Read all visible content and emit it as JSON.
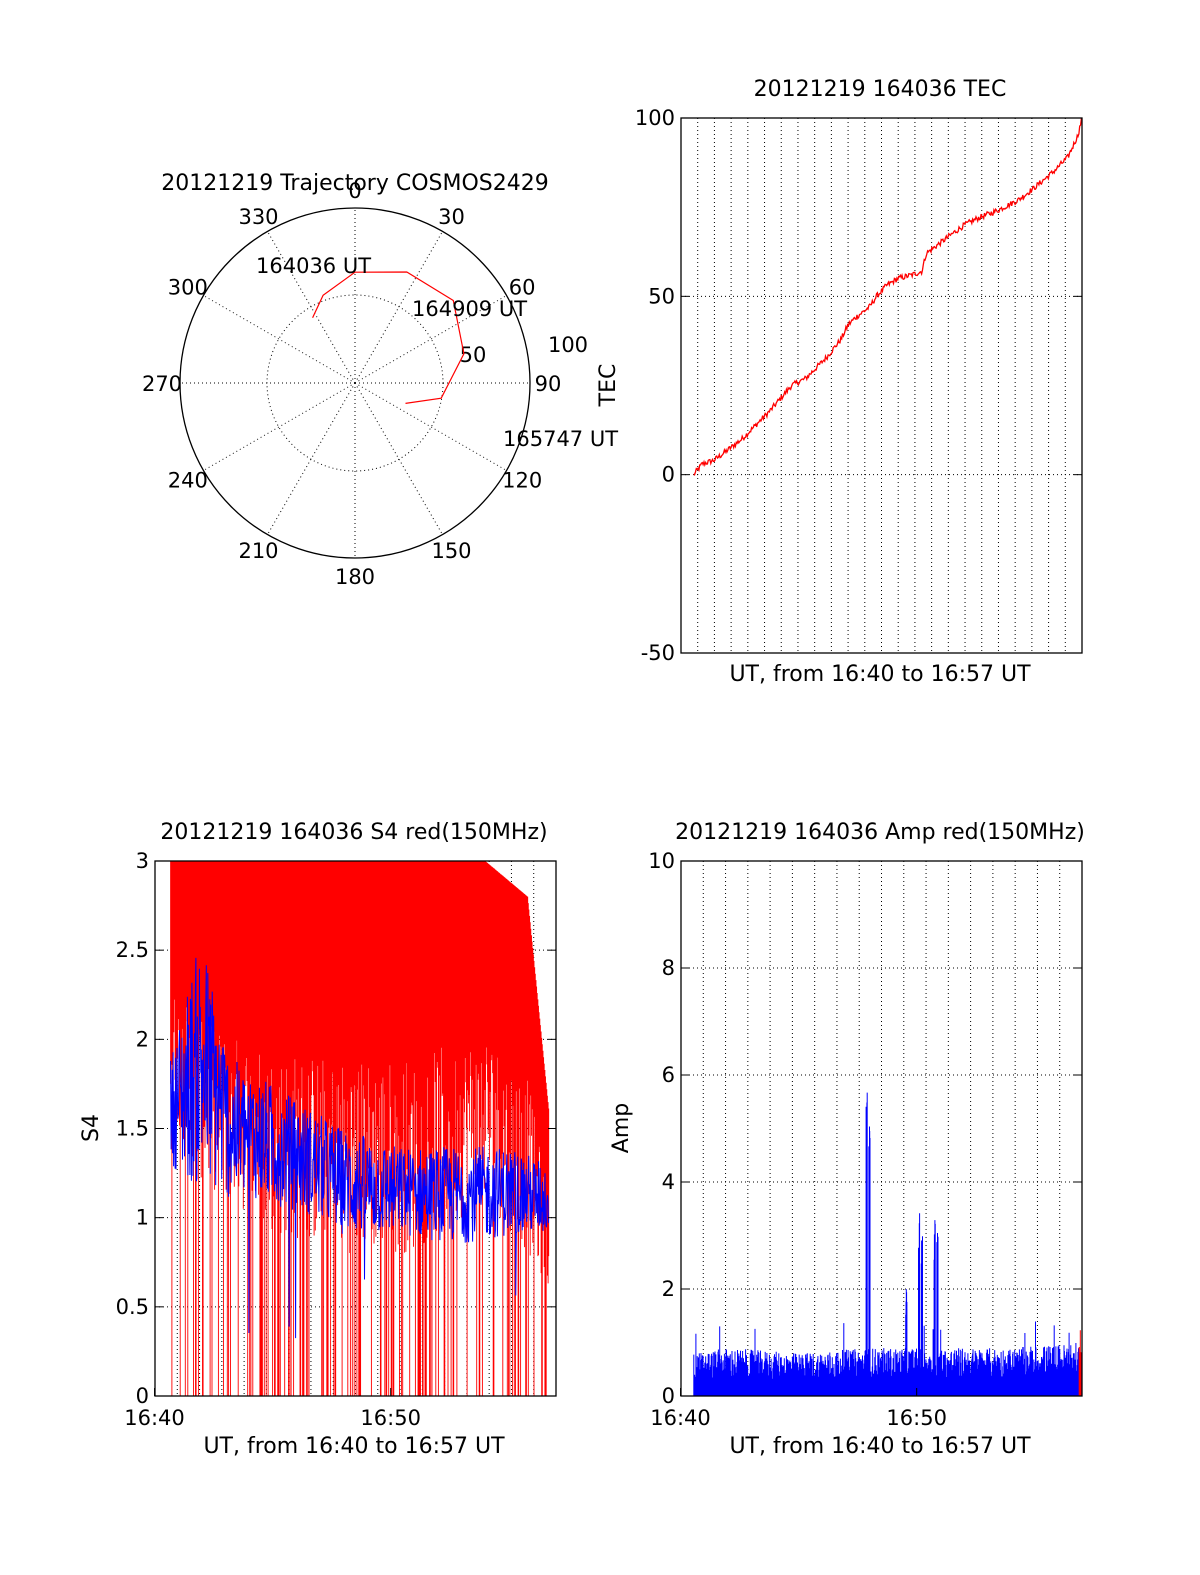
{
  "colors": {
    "red": "#ff0000",
    "blue": "#0000ff",
    "grid": "#000000"
  },
  "trajectory": {
    "title": "20121219 Trajectory COSMOS2429",
    "az_labels": [
      "0",
      "30",
      "60",
      "90",
      "120",
      "150",
      "180",
      "210",
      "240",
      "270",
      "300",
      "330"
    ],
    "elev_labels": [
      "50",
      "100"
    ],
    "annotations": [
      "164036 UT",
      "164909 UT",
      "165747 UT"
    ],
    "track": [
      [
        -33,
        50
      ],
      [
        -20,
        42
      ],
      [
        0,
        33
      ],
      [
        25,
        27
      ],
      [
        50,
        24
      ],
      [
        75,
        32
      ],
      [
        100,
        45
      ],
      [
        112,
        62
      ]
    ]
  },
  "chart_data": [
    {
      "type": "line",
      "title": "20121219 164036 TEC",
      "xlabel": "UT, from 16:40 to 16:57 UT",
      "ylabel": "TEC",
      "xlim": [
        16.667,
        16.95
      ],
      "ylim": [
        -50,
        100
      ],
      "yticks": [
        "100",
        "50",
        "0",
        "-50"
      ],
      "grid": true,
      "series": [
        {
          "color": "#ff0000",
          "points": [
            [
              16.676,
              0
            ],
            [
              16.682,
              3
            ],
            [
              16.69,
              4
            ],
            [
              16.697,
              6
            ],
            [
              16.71,
              10
            ],
            [
              16.72,
              14
            ],
            [
              16.73,
              18
            ],
            [
              16.745,
              25
            ],
            [
              16.755,
              27
            ],
            [
              16.77,
              33
            ],
            [
              16.78,
              38
            ],
            [
              16.785,
              42
            ],
            [
              16.79,
              44
            ],
            [
              16.8,
              47
            ],
            [
              16.805,
              50
            ],
            [
              16.812,
              53
            ],
            [
              16.82,
              55
            ],
            [
              16.83,
              56
            ],
            [
              16.837,
              57
            ],
            [
              16.84,
              62
            ],
            [
              16.85,
              65
            ],
            [
              16.86,
              68
            ],
            [
              16.867,
              70
            ],
            [
              16.877,
              72
            ],
            [
              16.89,
              74
            ],
            [
              16.905,
              77
            ],
            [
              16.915,
              80
            ],
            [
              16.93,
              85
            ],
            [
              16.94,
              89
            ],
            [
              16.947,
              95
            ],
            [
              16.95,
              100
            ]
          ]
        }
      ]
    },
    {
      "type": "line",
      "title": "20121219 164036 S4 red(150MHz)",
      "xlabel": "UT, from 16:40 to 16:57 UT",
      "ylabel": "S4",
      "xlim": [
        16.667,
        16.95
      ],
      "ylim": [
        0,
        3
      ],
      "xticks": [
        "16:40",
        "16:50"
      ],
      "yticks": [
        "3",
        "2.5",
        "2",
        "1.5",
        "1",
        "0.5",
        "0"
      ],
      "grid": true,
      "series": [
        {
          "color": "#ff0000",
          "envelope": [
            [
              16.678,
              1.6,
              3
            ],
            [
              16.7,
              1.2,
              3
            ],
            [
              16.75,
              0.9,
              3
            ],
            [
              16.8,
              0.8,
              3
            ],
            [
              16.85,
              0.8,
              3
            ],
            [
              16.9,
              1.1,
              3
            ],
            [
              16.93,
              0.8,
              2.8
            ],
            [
              16.945,
              0.6,
              1.6
            ]
          ]
        },
        {
          "color": "#0000ff",
          "envelope": [
            [
              16.678,
              1.3,
              1.9
            ],
            [
              16.69,
              1.2,
              2.3
            ],
            [
              16.7,
              1.15,
              2.6
            ],
            [
              16.72,
              1.1,
              1.9
            ],
            [
              16.74,
              1.1,
              1.8
            ],
            [
              16.78,
              1.0,
              1.6
            ],
            [
              16.8,
              0.9,
              1.5
            ],
            [
              16.84,
              0.9,
              1.4
            ],
            [
              16.88,
              0.85,
              1.4
            ],
            [
              16.92,
              0.9,
              1.4
            ],
            [
              16.945,
              0.9,
              1.3
            ]
          ]
        }
      ]
    },
    {
      "type": "bar",
      "title": "20121219 164036 Amp red(150MHz)",
      "xlabel": "UT, from 16:40 to 16:57 UT",
      "ylabel": "Amp",
      "xlim": [
        16.667,
        16.95
      ],
      "ylim": [
        0,
        10
      ],
      "xticks": [
        "16:40",
        "16:50"
      ],
      "yticks": [
        "10",
        "8",
        "6",
        "4",
        "2",
        "0"
      ],
      "grid": true,
      "series": [
        {
          "color": "#0000ff",
          "baseline_max": [
            [
              16.676,
              0.8
            ],
            [
              16.7,
              0.9
            ],
            [
              16.75,
              0.8
            ],
            [
              16.8,
              0.9
            ],
            [
              16.85,
              0.9
            ],
            [
              16.9,
              0.9
            ],
            [
              16.95,
              1.0
            ]
          ],
          "spikes": [
            [
              16.798,
              6.0
            ],
            [
              16.8,
              5.8
            ],
            [
              16.826,
              2.0
            ],
            [
              16.835,
              3.5
            ],
            [
              16.837,
              3.0
            ],
            [
              16.846,
              3.3
            ],
            [
              16.848,
              3.1
            ]
          ]
        },
        {
          "color": "#ff0000",
          "spikes": [
            [
              16.948,
              1.3
            ]
          ]
        }
      ]
    }
  ]
}
